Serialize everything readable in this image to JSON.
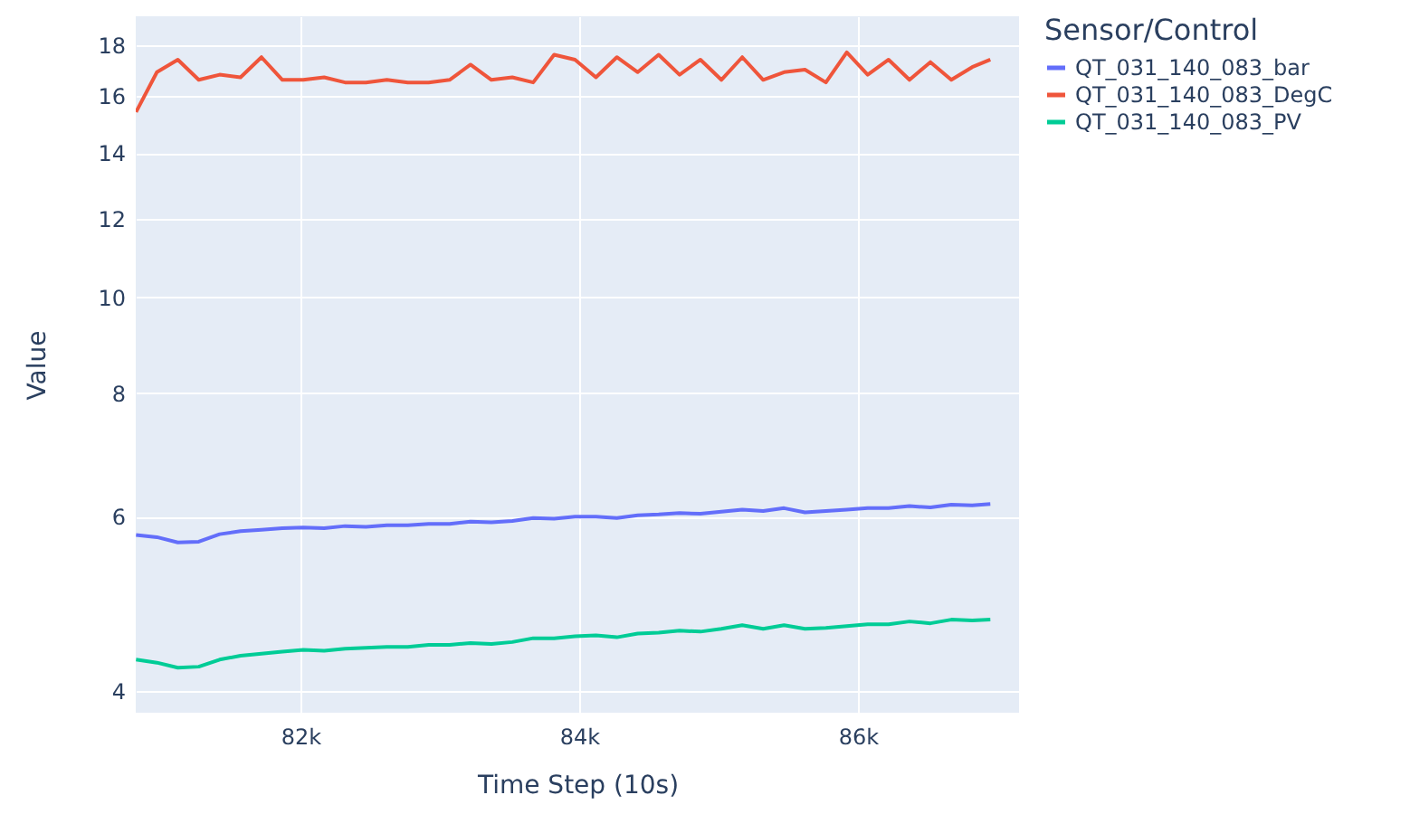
{
  "chart_data": {
    "type": "line",
    "xlabel": "Time Step (10s)",
    "ylabel": "Value",
    "legend_title": "Sensor/Control",
    "x": [
      80820,
      80970,
      81120,
      81270,
      81420,
      81570,
      81720,
      81870,
      82020,
      82170,
      82320,
      82470,
      82620,
      82770,
      82920,
      83070,
      83220,
      83370,
      83520,
      83670,
      83820,
      83970,
      84120,
      84270,
      84420,
      84570,
      84720,
      84870,
      85020,
      85170,
      85320,
      85470,
      85620,
      85770,
      85920,
      86070,
      86220,
      86370,
      86520,
      86670,
      86820,
      86950
    ],
    "series": [
      {
        "name": "QT_031_140_083_bar",
        "color": "#636efa",
        "values": [
          5.75,
          5.72,
          5.65,
          5.66,
          5.76,
          5.8,
          5.82,
          5.84,
          5.85,
          5.84,
          5.87,
          5.86,
          5.88,
          5.88,
          5.9,
          5.9,
          5.93,
          5.92,
          5.94,
          5.98,
          5.97,
          6.0,
          6.0,
          5.98,
          6.02,
          6.03,
          6.05,
          6.04,
          6.07,
          6.1,
          6.08,
          6.12,
          6.06,
          6.08,
          6.1,
          6.12,
          6.12,
          6.15,
          6.13,
          6.17,
          6.16,
          6.18
        ]
      },
      {
        "name": "QT_031_140_083_DegC",
        "color": "#ef553b",
        "values": [
          15.4,
          16.9,
          17.4,
          16.6,
          16.8,
          16.7,
          17.5,
          16.6,
          16.6,
          16.7,
          16.5,
          16.5,
          16.6,
          16.5,
          16.5,
          16.6,
          17.2,
          16.6,
          16.7,
          16.5,
          17.6,
          17.4,
          16.7,
          17.5,
          16.9,
          17.6,
          16.8,
          17.4,
          16.6,
          17.5,
          16.6,
          16.9,
          17.0,
          16.5,
          17.7,
          16.8,
          17.4,
          16.6,
          17.3,
          16.6,
          17.1,
          17.4
        ]
      },
      {
        "name": "QT_031_140_083_PV",
        "color": "#00cc96",
        "values": [
          4.3,
          4.27,
          4.22,
          4.23,
          4.3,
          4.34,
          4.36,
          4.38,
          4.4,
          4.39,
          4.41,
          4.42,
          4.43,
          4.43,
          4.45,
          4.45,
          4.47,
          4.46,
          4.48,
          4.52,
          4.52,
          4.54,
          4.55,
          4.53,
          4.57,
          4.58,
          4.6,
          4.59,
          4.62,
          4.66,
          4.62,
          4.66,
          4.62,
          4.63,
          4.65,
          4.67,
          4.67,
          4.7,
          4.68,
          4.72,
          4.71,
          4.72
        ]
      }
    ],
    "xlim": [
      80818,
      87156
    ],
    "xticks": [
      {
        "value": 82000,
        "label": "82k"
      },
      {
        "value": 84000,
        "label": "84k"
      },
      {
        "value": 86000,
        "label": "86k"
      }
    ],
    "ylim": [
      3.8,
      19.25
    ],
    "yticks": [
      4,
      6,
      8,
      10,
      12,
      14,
      16,
      18
    ],
    "log": true,
    "grid": true,
    "legend": "right",
    "marker": "none",
    "line_style": "solid"
  }
}
